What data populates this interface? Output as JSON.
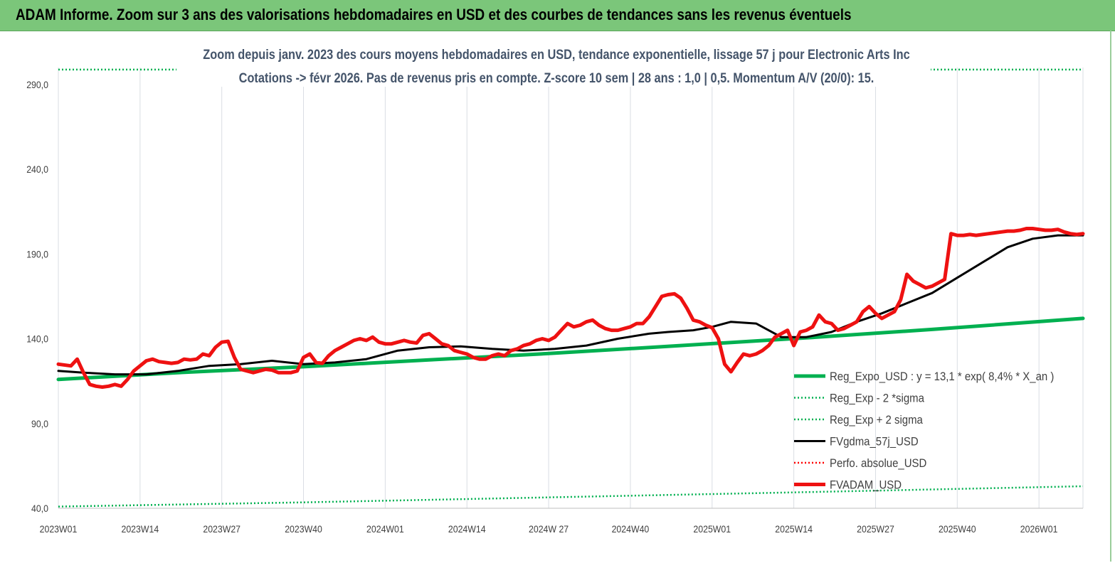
{
  "header": {
    "title": "ADAM Informe. Zoom sur 3 ans des valorisations hebdomadaires en USD et des courbes de tendances sans les revenus éventuels"
  },
  "chart_data": {
    "type": "line",
    "title": "Zoom depuis janv. 2023 des cours moyens hebdomadaires en USD, tendance exponentielle, lissage 57 j pour Electronic Arts Inc",
    "subtitle": "Cotations -> févr 2026.  Pas de revenus pris en compte. Z-score 10 sem  | 28 ans : 1,0  | 0,5. Momentum A/V (20/0): 15.",
    "xlabel": "",
    "ylabel": "",
    "ylim": [
      40,
      300
    ],
    "y_ticks": [
      "40,0",
      "90,0",
      "140,0",
      "190,0",
      "240,0",
      "290,0"
    ],
    "y_tick_values": [
      40,
      90,
      140,
      190,
      240,
      290
    ],
    "x_range": [
      1,
      164
    ],
    "x_ticks": [
      {
        "label": "2023W01",
        "x": 1
      },
      {
        "label": "2023W14",
        "x": 14
      },
      {
        "label": "2023W27",
        "x": 27
      },
      {
        "label": "2023W40",
        "x": 40
      },
      {
        "label": "2024W01",
        "x": 53
      },
      {
        "label": "2024W14",
        "x": 66
      },
      {
        "label": "2024W 27",
        "x": 79
      },
      {
        "label": "2024W40",
        "x": 92
      },
      {
        "label": "2025W01",
        "x": 105
      },
      {
        "label": "2025W14",
        "x": 118
      },
      {
        "label": "2025W27",
        "x": 131
      },
      {
        "label": "2025W40",
        "x": 144
      },
      {
        "label": "2026W01",
        "x": 157
      }
    ],
    "grid": "vertical",
    "legend_position": "bottom-right",
    "series": [
      {
        "name": "Reg_Expo_USD : y = 13,1 * exp( 8,4% *  X_an )",
        "color": "#00b050",
        "style": "solid-thick",
        "x": [
          1,
          20,
          40,
          60,
          80,
          100,
          120,
          140,
          164
        ],
        "y": [
          116,
          120,
          123.5,
          127.5,
          131.5,
          136,
          140.5,
          145.5,
          152
        ]
      },
      {
        "name": "Reg_Exp - 2 *sigma",
        "color": "#00b050",
        "style": "dotted",
        "x": [
          1,
          40,
          80,
          120,
          164
        ],
        "y": [
          41,
          43.5,
          46.5,
          49.5,
          53
        ]
      },
      {
        "name": "Reg_Exp + 2 sigma",
        "color": "#00b050",
        "style": "dotted",
        "x": [
          1,
          19,
          144,
          164
        ],
        "y": [
          298.8,
          298.8,
          298.8,
          298.8
        ]
      },
      {
        "name": "FVgdma_57j_USD",
        "color": "#000000",
        "style": "solid",
        "x": [
          1,
          5,
          10,
          15,
          20,
          25,
          30,
          35,
          40,
          45,
          50,
          55,
          60,
          65,
          70,
          75,
          80,
          85,
          90,
          95,
          98,
          102,
          105,
          108,
          112,
          116,
          120,
          124,
          128,
          132,
          136,
          140,
          144,
          148,
          152,
          156,
          160,
          164
        ],
        "y": [
          121,
          120,
          119,
          119,
          121,
          124,
          125,
          127,
          125,
          126,
          128,
          133,
          135,
          135.5,
          134,
          133,
          134,
          136,
          140,
          143,
          144,
          145,
          147,
          150,
          149,
          141,
          141,
          144,
          150,
          155,
          161,
          167,
          176,
          185,
          194,
          199,
          201,
          201
        ]
      },
      {
        "name": "Perfo. absolue_USD",
        "color": "#ff0000",
        "style": "dotted",
        "x": [],
        "y": []
      },
      {
        "name": "FVADAM_USD",
        "color": "#ee1111",
        "style": "solid-thick",
        "x": [
          1,
          3,
          4,
          5,
          6,
          7,
          8,
          9,
          10,
          11,
          12,
          13,
          14,
          15,
          16,
          17,
          18,
          19,
          20,
          21,
          22,
          23,
          24,
          25,
          26,
          27,
          28,
          29,
          30,
          31,
          32,
          33,
          34,
          35,
          36,
          37,
          38,
          39,
          40,
          41,
          42,
          43,
          44,
          45,
          46,
          47,
          48,
          49,
          50,
          51,
          52,
          53,
          54,
          55,
          56,
          57,
          58,
          59,
          60,
          61,
          62,
          63,
          64,
          65,
          66,
          67,
          68,
          69,
          70,
          71,
          72,
          73,
          74,
          75,
          76,
          77,
          78,
          79,
          80,
          81,
          82,
          83,
          84,
          85,
          86,
          87,
          88,
          89,
          90,
          91,
          92,
          93,
          94,
          95,
          96,
          97,
          98,
          99,
          100,
          101,
          102,
          103,
          104,
          105,
          106,
          107,
          108,
          109,
          110,
          111,
          112,
          113,
          114,
          115,
          116,
          117,
          118,
          119,
          120,
          121,
          122,
          123,
          124,
          125,
          126,
          127,
          128,
          129,
          130,
          131,
          132,
          133,
          134,
          135,
          136,
          137,
          138,
          139,
          140,
          141,
          142,
          143,
          144,
          145,
          146,
          147,
          148,
          149,
          150,
          151,
          152,
          153,
          154,
          155,
          156,
          157,
          158,
          159,
          160,
          161,
          162,
          163,
          164
        ],
        "y": [
          125,
          124,
          128,
          120,
          113,
          112,
          111.5,
          112,
          113,
          112,
          116,
          121,
          124,
          127,
          128,
          126.5,
          126,
          125.5,
          126,
          128,
          127.5,
          128,
          131,
          130,
          135,
          138,
          138.5,
          129,
          122,
          121,
          120,
          121,
          122,
          121.5,
          120,
          120,
          120,
          121,
          129,
          131,
          126,
          125.5,
          130,
          133,
          135,
          137,
          139,
          140,
          139,
          141,
          138,
          137,
          137,
          138,
          139,
          138,
          137.5,
          142,
          143,
          140,
          137,
          136,
          133,
          132,
          131,
          129,
          128,
          128,
          130,
          131,
          130,
          133,
          134,
          136,
          137,
          139,
          140,
          139,
          141,
          145,
          149,
          147,
          148,
          150,
          151,
          148,
          146,
          145,
          145,
          146,
          147,
          149,
          149,
          153,
          159,
          165,
          166,
          166.5,
          164,
          158,
          151,
          150,
          148,
          146.5,
          140,
          125,
          120.5,
          126,
          131,
          130,
          131,
          133,
          136,
          141,
          143,
          145,
          136,
          144,
          145,
          147,
          154,
          150,
          149,
          145,
          146,
          148,
          150,
          156,
          159,
          155,
          152,
          154,
          156,
          163,
          178,
          174,
          172,
          170,
          171,
          173,
          175,
          202,
          201,
          201,
          201.5,
          201,
          201.5,
          202,
          202.5,
          203,
          203.5,
          203.5,
          204,
          205,
          205,
          204.5,
          204,
          204,
          204.5,
          203,
          202,
          201.5,
          202
        ]
      }
    ]
  }
}
